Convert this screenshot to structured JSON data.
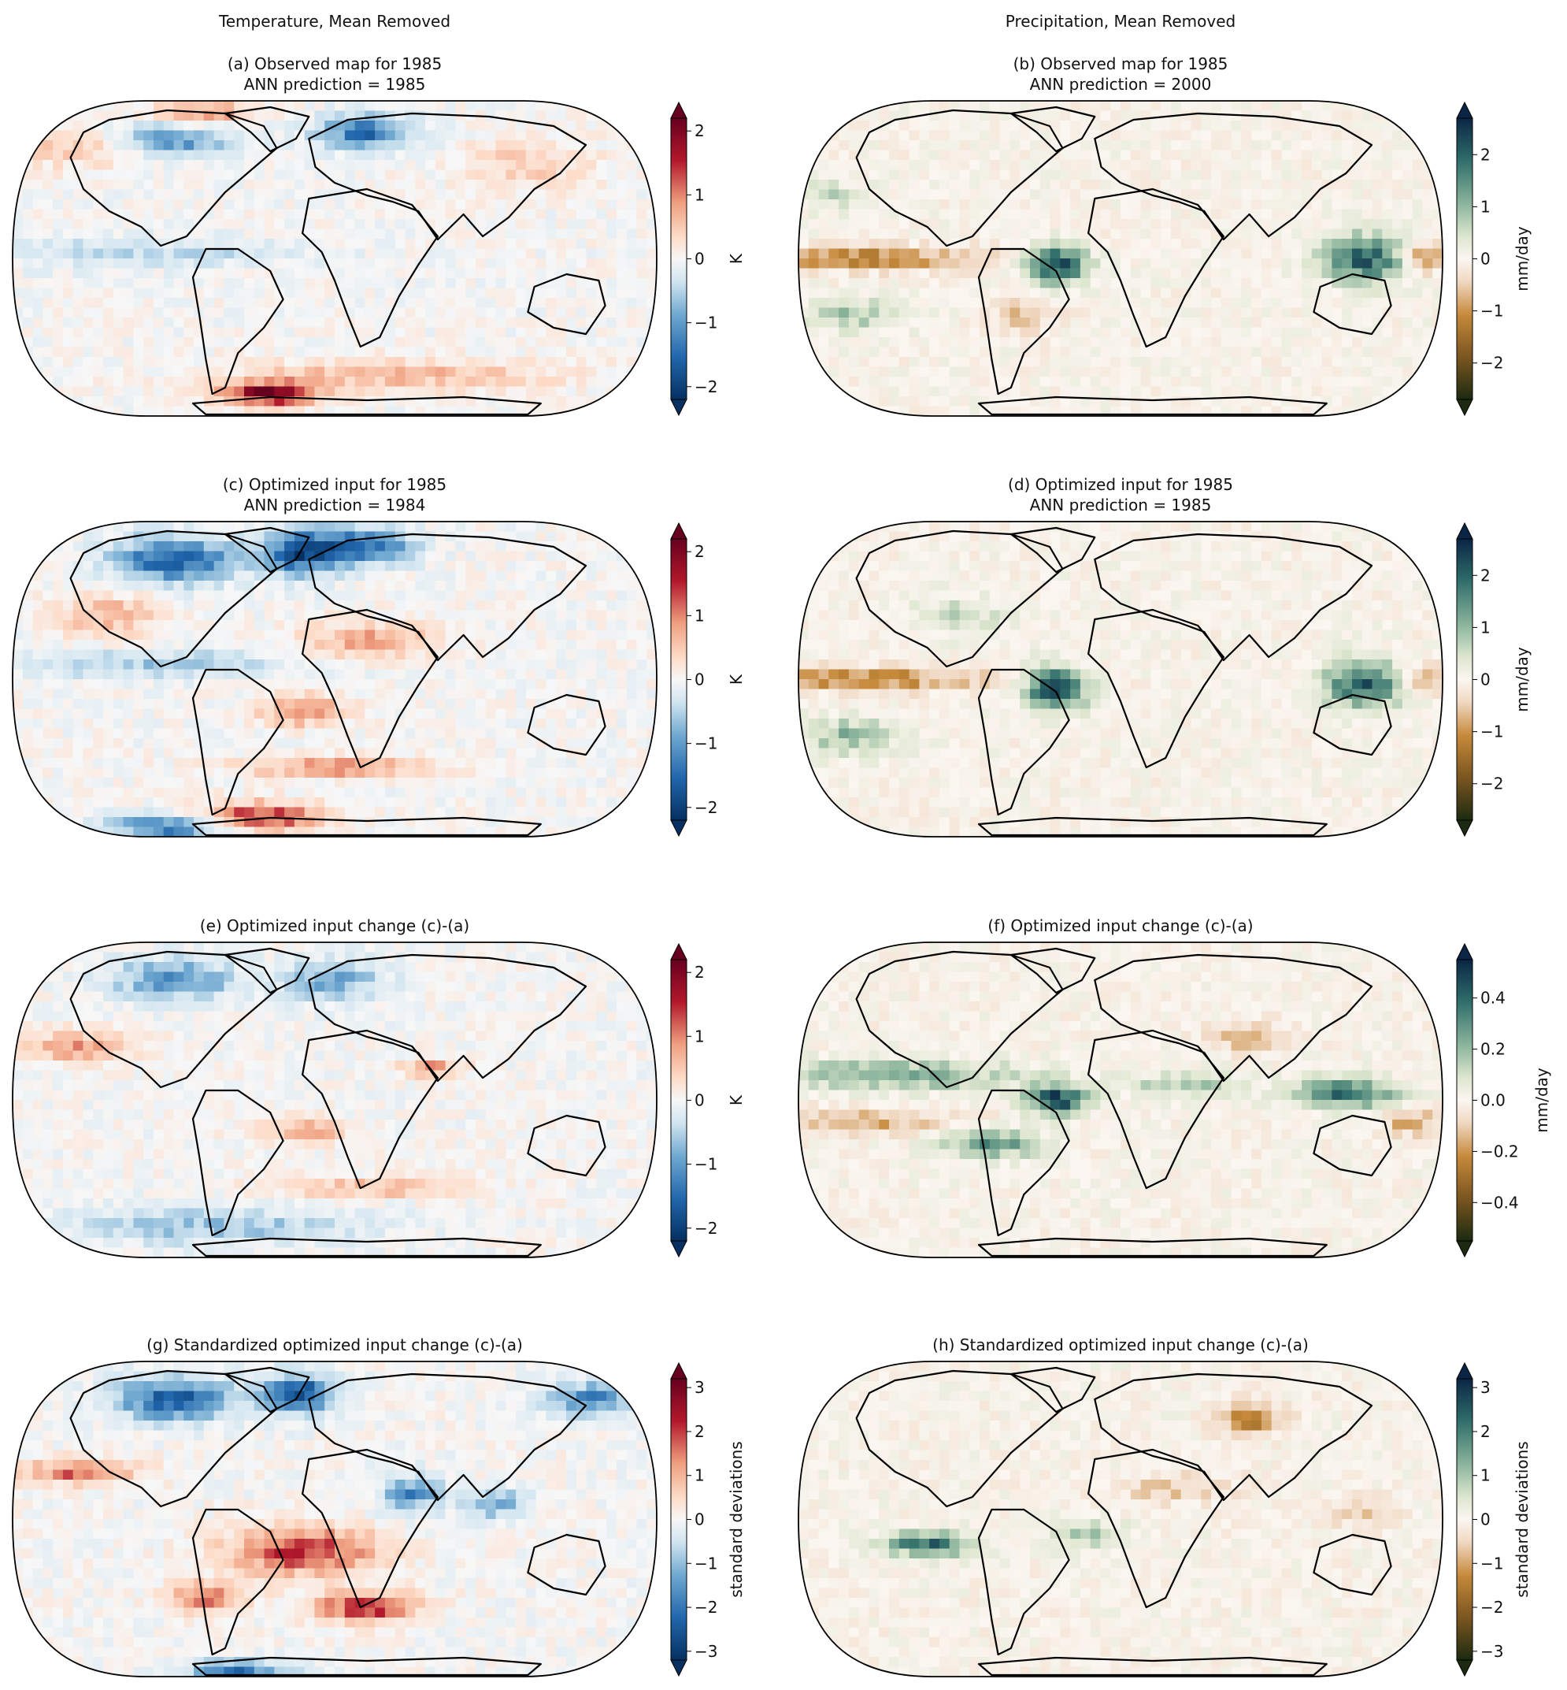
{
  "header": {
    "left": "Temperature, Mean Removed",
    "right": "Precipitation, Mean Removed"
  },
  "panels": [
    {
      "id": "a",
      "title_line1": "(a) Observed map for 1985",
      "title_line2": "ANN prediction = 1985",
      "variable": "temperature",
      "palette": "RdBu_r",
      "colorbar": {
        "label": "K",
        "ticks": [
          "2",
          "1",
          "0",
          "−1",
          "−2"
        ],
        "range": [
          -2.2,
          2.2
        ]
      }
    },
    {
      "id": "b",
      "title_line1": "(b) Observed map for 1985",
      "title_line2": "ANN prediction = 2000",
      "variable": "precipitation",
      "palette": "BrBG",
      "colorbar": {
        "label": "mm/day",
        "ticks": [
          "2",
          "1",
          "0",
          "−1",
          "−2"
        ],
        "range": [
          -2.7,
          2.7
        ]
      }
    },
    {
      "id": "c",
      "title_line1": "(c) Optimized input for 1985",
      "title_line2": "ANN prediction = 1984",
      "variable": "temperature",
      "palette": "RdBu_r",
      "colorbar": {
        "label": "K",
        "ticks": [
          "2",
          "1",
          "0",
          "−1",
          "−2"
        ],
        "range": [
          -2.2,
          2.2
        ]
      }
    },
    {
      "id": "d",
      "title_line1": "(d) Optimized input for 1985",
      "title_line2": "ANN prediction = 1985",
      "variable": "precipitation",
      "palette": "BrBG",
      "colorbar": {
        "label": "mm/day",
        "ticks": [
          "2",
          "1",
          "0",
          "−1",
          "−2"
        ],
        "range": [
          -2.7,
          2.7
        ]
      }
    },
    {
      "id": "e",
      "title_line1": "(e) Optimized input change (c)-(a)",
      "title_line2": "",
      "variable": "temperature",
      "palette": "RdBu_r",
      "colorbar": {
        "label": "K",
        "ticks": [
          "2",
          "1",
          "0",
          "−1",
          "−2"
        ],
        "range": [
          -2.2,
          2.2
        ]
      }
    },
    {
      "id": "f",
      "title_line1": "(f) Optimized input change (c)-(a)",
      "title_line2": "",
      "variable": "precipitation",
      "palette": "BrBG",
      "colorbar": {
        "label": "mm/day",
        "ticks": [
          "0.4",
          "0.2",
          "0.0",
          "−0.2",
          "−0.4"
        ],
        "range": [
          -0.55,
          0.55
        ]
      }
    },
    {
      "id": "g",
      "title_line1": "(g) Standardized optimized input change (c)-(a)",
      "title_line2": "",
      "variable": "temperature",
      "palette": "RdBu_r",
      "colorbar": {
        "label": "standard deviations",
        "ticks": [
          "3",
          "2",
          "1",
          "0",
          "−1",
          "−2",
          "−3"
        ],
        "range": [
          -3.2,
          3.2
        ]
      }
    },
    {
      "id": "h",
      "title_line1": "(h) Standardized optimized input change (c)-(a)",
      "title_line2": "",
      "variable": "precipitation",
      "palette": "BrBG",
      "colorbar": {
        "label": "standard deviations",
        "ticks": [
          "3",
          "2",
          "1",
          "0",
          "−1",
          "−2",
          "−3"
        ],
        "range": [
          -3.2,
          3.2
        ]
      }
    }
  ]
}
